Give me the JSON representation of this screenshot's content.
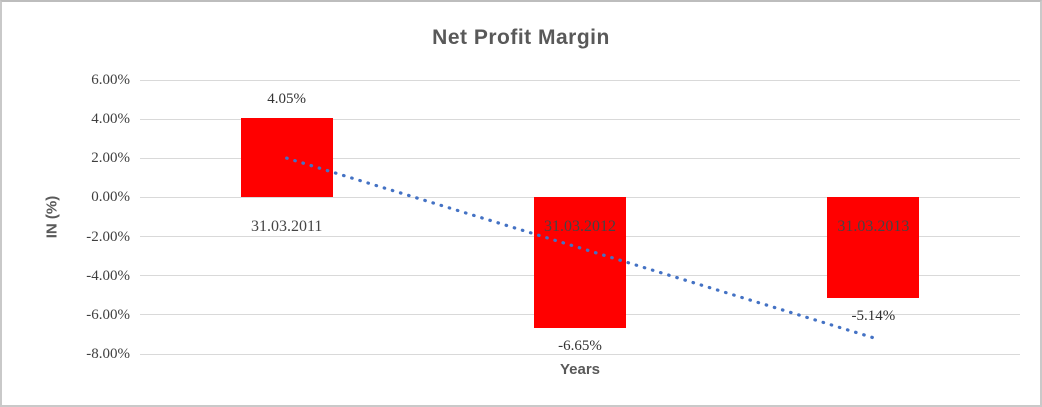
{
  "frame": {
    "background": "#ffffff",
    "border_color": "#c9c9c9"
  },
  "chart_data": {
    "type": "bar",
    "title": "Net Profit Margin",
    "xlabel": "Years",
    "ylabel": "IN (%)",
    "categories": [
      "31.03.2011",
      "31.03.2012",
      "31.03.2013"
    ],
    "values": [
      4.05,
      -6.65,
      -5.14
    ],
    "data_labels": [
      "4.05%",
      "-6.65%",
      "-5.14%"
    ],
    "ylim": [
      -8,
      6
    ],
    "ytick_step": 2,
    "yticks": [
      "6.00%",
      "4.00%",
      "2.00%",
      "0.00%",
      "-2.00%",
      "-4.00%",
      "-6.00%",
      "-8.00%"
    ],
    "grid": true,
    "legend": "none",
    "bar_color": "#ff0000",
    "gridline_color": "#d9d9d9",
    "text_color": "#595959",
    "trendline": {
      "kind": "linear",
      "style": "dotted",
      "color": "#4472c4",
      "start_value": 2.01,
      "end_value": -7.17
    }
  }
}
